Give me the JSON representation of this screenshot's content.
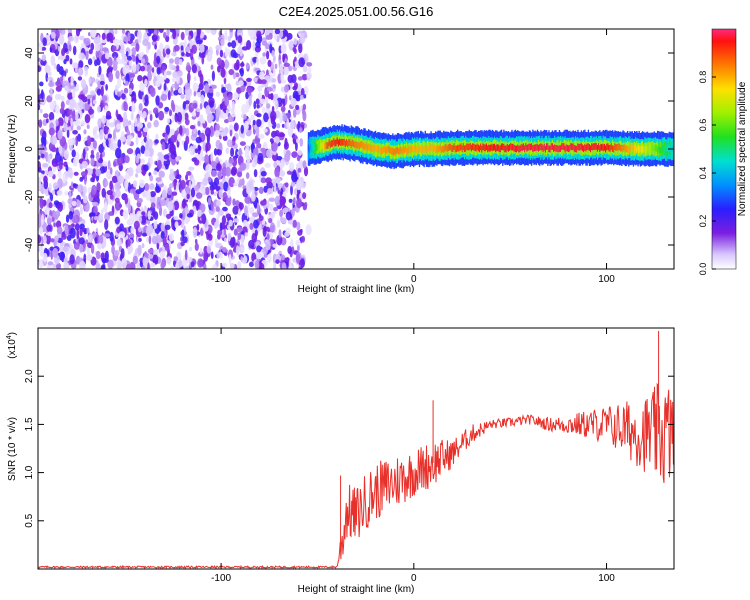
{
  "title": "C2E4.2025.051.00.56.G16",
  "chart_data": [
    {
      "type": "heatmap",
      "xlabel": "Height of straight line (km)",
      "ylabel": "Frequency (Hz)",
      "xlim": [
        -195,
        135
      ],
      "ylim": [
        -50,
        50
      ],
      "xticks": [
        -100,
        0,
        100
      ],
      "yticks": [
        -40,
        -20,
        0,
        20,
        40
      ],
      "colorbar": {
        "label": "Normalized spectral amplitude",
        "range": [
          0,
          1
        ],
        "ticks": [
          "0.0",
          "0.2",
          "0.4",
          "0.6",
          "0.8"
        ]
      },
      "description_points": {
        "noise_region_x": [
          -195,
          -57
        ],
        "signal_band_center_hz": 0,
        "signal_start_x": -55
      },
      "ridge": {
        "x": [
          -55,
          -45,
          -40,
          -30,
          -20,
          -10,
          0,
          10,
          20,
          40,
          60,
          80,
          100,
          120,
          135
        ],
        "freq": [
          0,
          2,
          3,
          2,
          0,
          -1,
          0,
          0,
          0.5,
          0.5,
          0.5,
          0.5,
          0.5,
          0,
          0
        ],
        "amplitude": [
          0.3,
          0.9,
          0.95,
          0.85,
          0.8,
          0.85,
          0.8,
          0.8,
          0.9,
          0.95,
          0.97,
          0.97,
          0.95,
          0.7,
          0.4
        ]
      }
    },
    {
      "type": "line",
      "xlabel": "Height of straight line (km)",
      "ylabel": "SNR (10 * v/v)",
      "yscale_label": "(x10",
      "yscale_exp": "4",
      "xlim": [
        -195,
        135
      ],
      "ylim": [
        0,
        2.5
      ],
      "xticks": [
        -100,
        0,
        100
      ],
      "yticks": [
        "0.5",
        "1.0",
        "1.5",
        "2.0"
      ],
      "color": "#e8302a",
      "envelope": {
        "x": [
          -195,
          -60,
          -40,
          -37,
          -35,
          -30,
          -25,
          -20,
          -10,
          0,
          10,
          20,
          30,
          40,
          50,
          60,
          70,
          80,
          90,
          100,
          110,
          120,
          125,
          130,
          135
        ],
        "mean": [
          0.02,
          0.02,
          0.02,
          0.3,
          0.6,
          0.55,
          0.7,
          0.8,
          0.9,
          1.0,
          1.1,
          1.2,
          1.4,
          1.5,
          1.52,
          1.55,
          1.5,
          1.5,
          1.5,
          1.5,
          1.45,
          1.4,
          1.4,
          1.4,
          1.4
        ],
        "amp": [
          0.01,
          0.01,
          0.01,
          0.25,
          0.3,
          0.3,
          0.3,
          0.3,
          0.3,
          0.25,
          0.25,
          0.15,
          0.1,
          0.05,
          0.05,
          0.05,
          0.07,
          0.1,
          0.15,
          0.2,
          0.3,
          0.4,
          0.5,
          0.6,
          0.5
        ]
      },
      "spikes": [
        {
          "x": -38,
          "y": 0.97
        },
        {
          "x": 10,
          "y": 1.75
        },
        {
          "x": 127,
          "y": 2.47
        }
      ]
    }
  ]
}
